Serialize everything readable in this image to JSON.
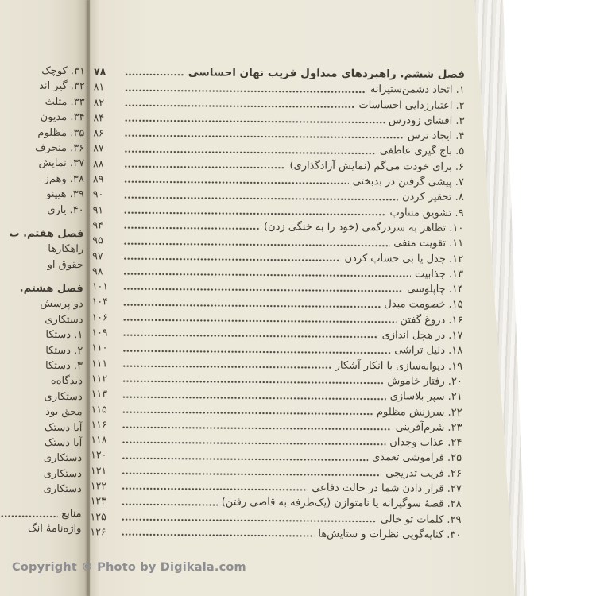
{
  "photo": {
    "watermark": "Copyright © Photo by Digikala.com"
  },
  "colors": {
    "background": "#ffffff",
    "page_cream": "#ece8db",
    "left_page_cream": "#e6e1d2",
    "text": "#403c33",
    "watermark_gray": "#8e8e92"
  },
  "right_page": {
    "rows": [
      {
        "label": "فصل ششم. راهبردهای متداول فریب نهان احساسی",
        "page": "۷۸",
        "bold": true
      },
      {
        "label": "۱. اتحاد دشمن‌ستیزانه",
        "page": "۸۱"
      },
      {
        "label": "۲. اعتبارزدایی احساسات",
        "page": "۸۲"
      },
      {
        "label": "۳. افشای زودرس",
        "page": "۸۴"
      },
      {
        "label": "۴. ایجاد ترس",
        "page": "۸۶"
      },
      {
        "label": "۵. باج گیری عاطفی",
        "page": "۸۷"
      },
      {
        "label": "۶. برای خودت می‌گم (نمایش آزادگذاری)",
        "page": "۸۸"
      },
      {
        "label": "۷. پیشی گرفتن در بدبختی",
        "page": "۸۹"
      },
      {
        "label": "۸. تحقیر کردن",
        "page": "۹۰"
      },
      {
        "label": "۹. تشویق متناوب",
        "page": "۹۱"
      },
      {
        "label": "۱۰. تظاهر به سردرگمی (خود را به خنگی زدن)",
        "page": "۹۴"
      },
      {
        "label": "۱۱. تقویت منفی",
        "page": "۹۵"
      },
      {
        "label": "۱۲. جدل یا بی حساب کردن",
        "page": "۹۷"
      },
      {
        "label": "۱۳. جذابیت",
        "page": "۹۸"
      },
      {
        "label": "۱۴. چاپلوسی",
        "page": "۱۰۱"
      },
      {
        "label": "۱۵. خصومت مبدل",
        "page": "۱۰۴"
      },
      {
        "label": "۱۶. دروغ گفتن",
        "page": "۱۰۶"
      },
      {
        "label": "۱۷. در هچل اندازی",
        "page": "۱۰۹"
      },
      {
        "label": "۱۸. دلیل تراشی",
        "page": "۱۱۰"
      },
      {
        "label": "۱۹. دیوانه‌سازی با انکار آشکار",
        "page": "۱۱۱"
      },
      {
        "label": "۲۰. رفتار خاموش",
        "page": "۱۱۲"
      },
      {
        "label": "۲۱. سپر بلاسازی",
        "page": "۱۱۳"
      },
      {
        "label": "۲۲. سرزنش مظلوم",
        "page": "۱۱۵"
      },
      {
        "label": "۲۳. شرم‌آفرینی",
        "page": "۱۱۶"
      },
      {
        "label": "۲۴. عذاب وجدان",
        "page": "۱۱۸"
      },
      {
        "label": "۲۵. فراموشی تعمدی",
        "page": "۱۲۰"
      },
      {
        "label": "۲۶. فریب تدریجی",
        "page": "۱۲۱"
      },
      {
        "label": "۲۷. قرار دادن شما در حالت دفاعی",
        "page": "۱۲۲"
      },
      {
        "label": "۲۸. قصهٔ سوگیرانه یا نامتوازن (یک‌طرفه به قاضی رفتن)",
        "page": "۱۲۳"
      },
      {
        "label": "۲۹. کلمات تو خالی",
        "page": "۱۲۵"
      },
      {
        "label": "۳۰. کنایه‌گویی نظرات و ستایش‌ها",
        "page": "۱۲۶"
      }
    ]
  },
  "left_page": {
    "rows": [
      {
        "label": "۳۱. کوچک"
      },
      {
        "label": "۳۲. گیر اند"
      },
      {
        "label": "۳۳. مثلث"
      },
      {
        "label": "۳۴. مدیون"
      },
      {
        "label": "۳۵. مظلوم"
      },
      {
        "label": "۳۶. منحرف"
      },
      {
        "label": "۳۷. نمایش"
      },
      {
        "label": "۳۸. وهم‌ز"
      },
      {
        "label": "۳۹. هیپنو"
      },
      {
        "label": "۴۰. یاری"
      },
      {
        "label": "فصل هفتم. ب",
        "bold": true,
        "gap": true
      },
      {
        "label": "راهکارها"
      },
      {
        "label": "حقوق او"
      },
      {
        "label": "فصل هشتم.",
        "bold": true,
        "gap": true
      },
      {
        "label": "دو پرسش"
      },
      {
        "label": "دستکاری"
      },
      {
        "label": "۱. دستکا"
      },
      {
        "label": "۲. دستکا"
      },
      {
        "label": "۳. دستکا"
      },
      {
        "label": "دیدگاه‌ه"
      },
      {
        "label": "دستکاری"
      },
      {
        "label": "محق بود"
      },
      {
        "label": "آیا دستک"
      },
      {
        "label": "آیا دستک"
      },
      {
        "label": "دستکاری"
      },
      {
        "label": "دستکاری"
      },
      {
        "label": "دستکاری"
      },
      {
        "label": "منابع",
        "gap": true,
        "leader": true
      },
      {
        "label": "واژه‌نامهٔ انگ"
      }
    ]
  }
}
